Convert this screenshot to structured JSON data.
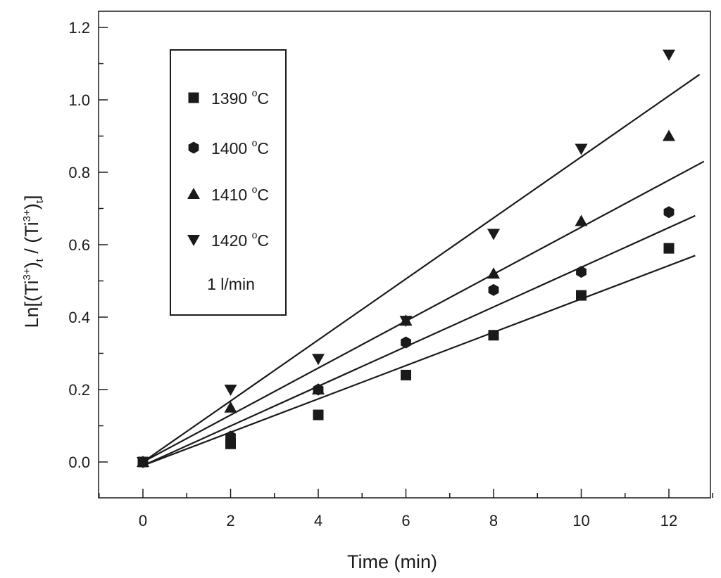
{
  "chart_data": {
    "type": "scatter",
    "title": "",
    "xlabel": "Time (min)",
    "ylabel_parts": {
      "prefix": "Ln[(Ti",
      "sup1": "3+",
      "mid1": ")",
      "sub1": "t",
      "mid2": " / (Ti",
      "sup2": "3+",
      "mid3": ")",
      "sub2": "t",
      "suffix": "]"
    },
    "xlim": [
      -1,
      13.5
    ],
    "ylim": [
      -0.1,
      1.25
    ],
    "xticks": [
      0,
      2,
      4,
      6,
      8,
      10,
      12
    ],
    "xtick_labels": [
      "0",
      "2",
      "4",
      "6",
      "8",
      "10",
      "12"
    ],
    "yticks": [
      0.0,
      0.2,
      0.4,
      0.6,
      0.8,
      1.0,
      1.2
    ],
    "ytick_labels": [
      "0.0",
      "0.2",
      "0.4",
      "0.6",
      "0.8",
      "1.0",
      "1.2"
    ],
    "grid": false,
    "legend_position": "top-left",
    "legend_note": "1 l/min",
    "series": [
      {
        "name": "1390",
        "unit_prefix": "o",
        "unit": "C",
        "marker": "square",
        "x": [
          0,
          2,
          4,
          6,
          8,
          10,
          12
        ],
        "values": [
          0.0,
          0.05,
          0.13,
          0.24,
          0.35,
          0.46,
          0.59
        ],
        "fit": {
          "x": [
            0,
            12.6
          ],
          "y": [
            -0.01,
            0.57
          ]
        }
      },
      {
        "name": "1400",
        "unit_prefix": "o",
        "unit": "C",
        "marker": "hexagon",
        "x": [
          0,
          2,
          4,
          6,
          8,
          10,
          12
        ],
        "values": [
          0.0,
          0.07,
          0.2,
          0.33,
          0.475,
          0.525,
          0.69
        ],
        "fit": {
          "x": [
            0,
            12.6
          ],
          "y": [
            -0.01,
            0.68
          ]
        }
      },
      {
        "name": "1410",
        "unit_prefix": "o",
        "unit": "C",
        "marker": "triangle-up",
        "x": [
          0,
          2,
          4,
          6,
          8,
          10,
          12
        ],
        "values": [
          0.0,
          0.15,
          0.2,
          0.39,
          0.52,
          0.665,
          0.9
        ],
        "fit": {
          "x": [
            0,
            12.8
          ],
          "y": [
            0.0,
            0.83
          ]
        }
      },
      {
        "name": "1420",
        "unit_prefix": "o",
        "unit": "C",
        "marker": "triangle-down",
        "x": [
          0,
          2,
          4,
          6,
          8,
          10,
          12
        ],
        "values": [
          0.0,
          0.2,
          0.285,
          0.39,
          0.63,
          0.865,
          1.125
        ],
        "fit": {
          "x": [
            0,
            12.7
          ],
          "y": [
            0.0,
            1.07
          ]
        }
      }
    ]
  }
}
